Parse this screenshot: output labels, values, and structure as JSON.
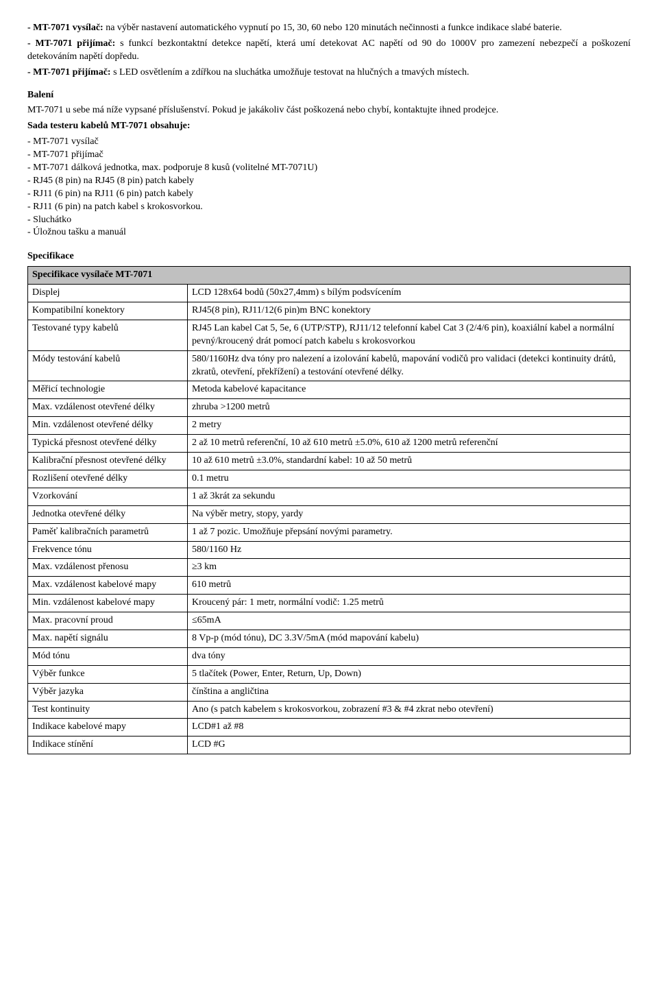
{
  "intro": {
    "vysilac_label": "- MT-7071 vysílač:",
    "vysilac_text": " na výběr nastavení automatického vypnutí po 15, 30, 60 nebo 120 minutách nečinnosti a funkce indikace slabé baterie.",
    "prijimac1_label": "- MT-7071 přijímač:",
    "prijimac1_text": " s funkcí bezkontaktní detekce napětí, která umí detekovat AC napětí od 90 do 1000V pro zamezení nebezpečí a poškození detekováním napětí dopředu.",
    "prijimac2_label": "- MT-7071 přijímač:",
    "prijimac2_text": " s LED osvětlením a zdířkou na sluchátka umožňuje testovat na hlučných a tmavých místech."
  },
  "baleni": {
    "heading": "Balení",
    "text": "MT-7071 u sebe má níže vypsané příslušenství. Pokud je jakákoliv část poškozená nebo chybí, kontaktujte ihned prodejce.",
    "sada_heading": "Sada testeru kabelů MT-7071 obsahuje:",
    "items": [
      "- MT-7071 vysílač",
      "- MT-7071 přijímač",
      "- MT-7071 dálková jednotka, max. podporuje 8 kusů (volitelné MT-7071U)",
      "- RJ45 (8 pin) na RJ45 (8 pin) patch kabely",
      "- RJ11 (6 pin) na RJ11 (6 pin) patch kabely",
      "- RJ11 (6 pin) na patch kabel s krokosvorkou.",
      "- Sluchátko",
      "- Úložnou tašku a manuál"
    ]
  },
  "spec": {
    "heading": "Specifikace",
    "table_header": "Specifikace vysílače MT-7071",
    "rows": [
      {
        "label": "Displej",
        "value": "LCD 128x64 bodů (50x27,4mm) s bílým podsvícením"
      },
      {
        "label": "Kompatibilní konektory",
        "value": "RJ45(8 pin), RJ11/12(6 pin)m BNC konektory"
      },
      {
        "label": "Testované typy kabelů",
        "value": "RJ45 Lan kabel Cat 5, 5e, 6 (UTP/STP), RJ11/12 telefonní kabel  Cat 3 (2/4/6 pin), koaxiální kabel a normální pevný/kroucený drát pomocí patch kabelu s krokosvorkou"
      },
      {
        "label": "Módy testování kabelů",
        "value": "580/1160Hz dva tóny pro nalezení a izolování kabelů, mapování vodičů pro validaci (detekci kontinuity drátů, zkratů, otevření, překřížení) a testování otevřené délky."
      },
      {
        "label": "Měřicí technologie",
        "value": "Metoda kabelové kapacitance"
      },
      {
        "label": "Max. vzdálenost otevřené délky",
        "value": "zhruba >1200 metrů"
      },
      {
        "label": "Min. vzdálenost otevřené délky",
        "value": "2 metry"
      },
      {
        "label": "Typická přesnost otevřené délky",
        "value": "2 až 10 metrů referenční, 10 až 610 metrů ±5.0%, 610 až 1200 metrů referenční"
      },
      {
        "label": "Kalibrační přesnost otevřené délky",
        "value": "10 až 610 metrů ±3.0%, standardní kabel: 10 až 50 metrů"
      },
      {
        "label": "Rozlišení otevřené délky",
        "value": "0.1 metru"
      },
      {
        "label": "Vzorkování",
        "value": "1 až 3krát za sekundu"
      },
      {
        "label": "Jednotka otevřené délky",
        "value": "Na výběr metry, stopy, yardy"
      },
      {
        "label": "Paměť kalibračních parametrů",
        "value": "1 až 7 pozic. Umožňuje přepsání novými parametry."
      },
      {
        "label": "Frekvence tónu",
        "value": "580/1160 Hz"
      },
      {
        "label": "Max. vzdálenost přenosu",
        "value": "≥3 km"
      },
      {
        "label": "Max. vzdálenost kabelové mapy",
        "value": "610 metrů"
      },
      {
        "label": "Min. vzdálenost kabelové mapy",
        "value": "Kroucený pár: 1 metr, normální vodič: 1.25 metrů"
      },
      {
        "label": "Max. pracovní proud",
        "value": "≤65mA"
      },
      {
        "label": "Max. napětí signálu",
        "value": "8 Vp-p (mód tónu), DC 3.3V/5mA (mód mapování kabelu)"
      },
      {
        "label": "Mód tónu",
        "value": "dva tóny"
      },
      {
        "label": "Výběr funkce",
        "value": "5 tlačítek (Power, Enter, Return, Up, Down)"
      },
      {
        "label": "Výběr jazyka",
        "value": "čínština a angličtina"
      },
      {
        "label": "Test kontinuity",
        "value": "Ano (s patch kabelem s krokosvorkou, zobrazení #3 & #4 zkrat nebo otevření)"
      },
      {
        "label": "Indikace kabelové mapy",
        "value": "LCD#1 až #8"
      },
      {
        "label": "Indikace stínění",
        "value": "LCD #G"
      }
    ]
  }
}
